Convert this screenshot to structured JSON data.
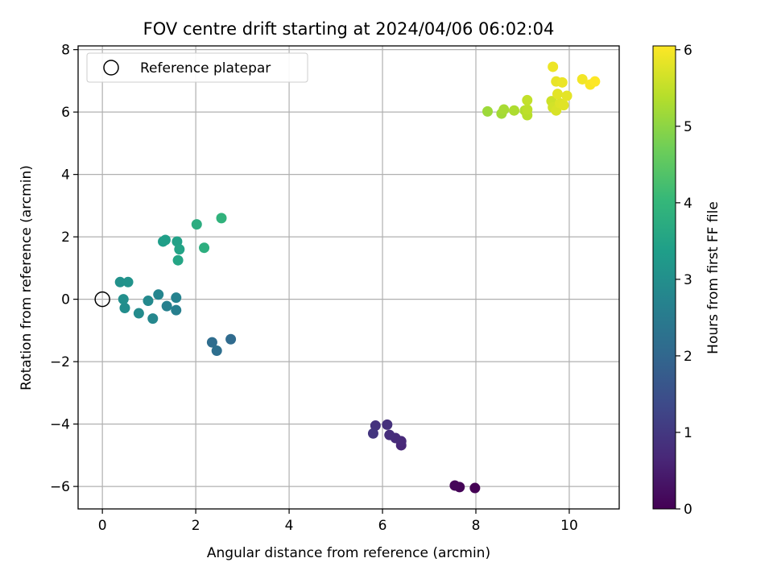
{
  "chart_data": {
    "type": "scatter",
    "title": "FOV centre drift starting at 2024/04/06 06:02:04",
    "xlabel": "Angular distance from reference (arcmin)",
    "ylabel": "Rotation from reference (arcmin)",
    "xlim": [
      -0.52,
      11.07
    ],
    "ylim": [
      -6.72,
      8.12
    ],
    "xticks": [
      0,
      2,
      4,
      6,
      8,
      10
    ],
    "yticks": [
      -6,
      -4,
      -2,
      0,
      2,
      4,
      6,
      8
    ],
    "grid": true,
    "legend": {
      "position": "top-left",
      "entries": [
        {
          "label": "Reference platepar",
          "marker": "open-circle"
        }
      ]
    },
    "reference_point": {
      "x": 0,
      "y": 0
    },
    "colorbar": {
      "label": "Hours from first FF file",
      "range": [
        0,
        6.05
      ],
      "ticks": [
        0,
        1,
        2,
        3,
        4,
        5,
        6
      ],
      "colormap": "viridis"
    },
    "colormap_stops": [
      "#440154",
      "#482878",
      "#3e4989",
      "#31688e",
      "#26828e",
      "#1f9e89",
      "#35b779",
      "#6ece58",
      "#b5de2b",
      "#fde725"
    ],
    "points": [
      {
        "x": 7.98,
        "y": -6.05,
        "t": 0.0
      },
      {
        "x": 7.65,
        "y": -6.02,
        "t": 0.05
      },
      {
        "x": 7.55,
        "y": -5.97,
        "t": 0.1
      },
      {
        "x": 6.4,
        "y": -4.68,
        "t": 0.65
      },
      {
        "x": 6.4,
        "y": -4.55,
        "t": 0.7
      },
      {
        "x": 6.28,
        "y": -4.45,
        "t": 0.75
      },
      {
        "x": 6.15,
        "y": -4.35,
        "t": 0.8
      },
      {
        "x": 6.1,
        "y": -4.02,
        "t": 0.85
      },
      {
        "x": 5.85,
        "y": -4.05,
        "t": 0.9
      },
      {
        "x": 5.8,
        "y": -4.3,
        "t": 0.95
      },
      {
        "x": 2.75,
        "y": -1.28,
        "t": 2.1
      },
      {
        "x": 2.35,
        "y": -1.38,
        "t": 2.15
      },
      {
        "x": 2.45,
        "y": -1.65,
        "t": 2.2
      },
      {
        "x": 1.58,
        "y": -0.35,
        "t": 2.6
      },
      {
        "x": 1.38,
        "y": -0.22,
        "t": 2.65
      },
      {
        "x": 1.58,
        "y": 0.05,
        "t": 2.7
      },
      {
        "x": 1.2,
        "y": 0.15,
        "t": 2.75
      },
      {
        "x": 1.08,
        "y": -0.62,
        "t": 2.8
      },
      {
        "x": 0.98,
        "y": -0.05,
        "t": 2.85
      },
      {
        "x": 0.78,
        "y": -0.45,
        "t": 2.9
      },
      {
        "x": 0.48,
        "y": -0.28,
        "t": 2.95
      },
      {
        "x": 0.45,
        "y": 0.0,
        "t": 3.0
      },
      {
        "x": 0.38,
        "y": 0.55,
        "t": 3.05
      },
      {
        "x": 0.55,
        "y": 0.55,
        "t": 3.1
      },
      {
        "x": 1.3,
        "y": 1.85,
        "t": 3.35
      },
      {
        "x": 1.35,
        "y": 1.9,
        "t": 3.4
      },
      {
        "x": 1.6,
        "y": 1.85,
        "t": 3.45
      },
      {
        "x": 1.65,
        "y": 1.6,
        "t": 3.5
      },
      {
        "x": 1.62,
        "y": 1.25,
        "t": 3.55
      },
      {
        "x": 2.02,
        "y": 2.4,
        "t": 3.75
      },
      {
        "x": 2.18,
        "y": 1.65,
        "t": 3.8
      },
      {
        "x": 2.55,
        "y": 2.6,
        "t": 3.9
      },
      {
        "x": 8.25,
        "y": 6.02,
        "t": 5.15
      },
      {
        "x": 8.55,
        "y": 5.95,
        "t": 5.2
      },
      {
        "x": 8.6,
        "y": 6.08,
        "t": 5.25
      },
      {
        "x": 8.82,
        "y": 6.05,
        "t": 5.3
      },
      {
        "x": 9.05,
        "y": 6.05,
        "t": 5.35
      },
      {
        "x": 9.1,
        "y": 5.9,
        "t": 5.4
      },
      {
        "x": 9.1,
        "y": 6.08,
        "t": 5.45
      },
      {
        "x": 9.1,
        "y": 6.38,
        "t": 5.5
      },
      {
        "x": 9.62,
        "y": 6.35,
        "t": 5.6
      },
      {
        "x": 9.65,
        "y": 6.15,
        "t": 5.65
      },
      {
        "x": 9.72,
        "y": 6.05,
        "t": 5.7
      },
      {
        "x": 9.8,
        "y": 6.28,
        "t": 5.75
      },
      {
        "x": 9.88,
        "y": 6.22,
        "t": 5.78
      },
      {
        "x": 9.75,
        "y": 6.58,
        "t": 5.8
      },
      {
        "x": 9.95,
        "y": 6.52,
        "t": 5.82
      },
      {
        "x": 9.72,
        "y": 6.98,
        "t": 5.85
      },
      {
        "x": 9.85,
        "y": 6.95,
        "t": 5.88
      },
      {
        "x": 9.65,
        "y": 7.45,
        "t": 5.9
      },
      {
        "x": 10.28,
        "y": 7.05,
        "t": 5.95
      },
      {
        "x": 10.45,
        "y": 6.88,
        "t": 6.0
      },
      {
        "x": 10.55,
        "y": 6.98,
        "t": 6.05
      }
    ]
  }
}
